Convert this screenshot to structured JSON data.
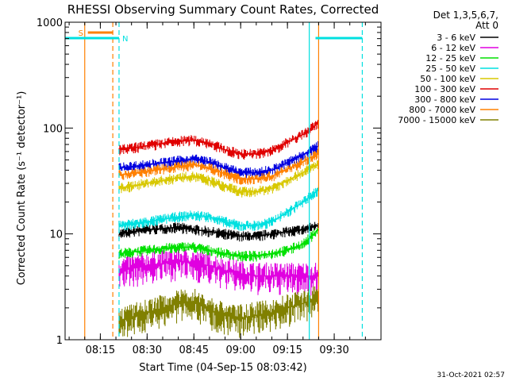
{
  "chart_data": {
    "type": "line",
    "title": "RHESSI Observing Summary Count Rates, Corrected",
    "ylabel": "Corrected Count Rate (s⁻¹ detector⁻¹)",
    "xlabel": "Start Time (04-Sep-15 08:03:42)",
    "yscale": "log",
    "ylim": [
      1,
      1000
    ],
    "xlim": [
      "08:03:42",
      "09:45:00"
    ],
    "x_ticks": [
      "08:15",
      "08:30",
      "08:45",
      "09:00",
      "09:15",
      "09:30"
    ],
    "y_ticks": [
      "1",
      "10",
      "100",
      "1000"
    ],
    "legend_header": [
      "Det 1,3,5,6,7,",
      "Att 0"
    ],
    "legend_placement": "right",
    "footer_date": "31-Oct-2021 02:57",
    "grid": false,
    "annotations": {
      "saa_label": "S",
      "night_label": "N",
      "saa_interval": [
        "08:11",
        "08:19"
      ],
      "night_intervals": [
        [
          "08:03:42",
          "08:21"
        ],
        [
          "09:24",
          "09:39"
        ]
      ],
      "orange_lines": [
        "08:10",
        "08:19",
        "09:25"
      ],
      "cyan_lines": [
        "08:21",
        "09:22",
        "09:39"
      ]
    },
    "x": [
      "08:21",
      "08:30",
      "08:40",
      "08:45",
      "08:50",
      "08:55",
      "09:00",
      "09:05",
      "09:10",
      "09:15",
      "09:20",
      "09:25"
    ],
    "series": [
      {
        "name": "3 - 6 keV",
        "color": "#000000",
        "values": [
          10,
          11,
          11.5,
          11,
          10.5,
          10,
          9.5,
          9.5,
          10,
          10.5,
          11,
          12
        ]
      },
      {
        "name": "6 - 12 keV",
        "color": "#e000e0",
        "values": [
          4.5,
          5,
          5.5,
          5.3,
          5,
          4.5,
          4.2,
          4,
          4,
          4,
          4,
          4
        ]
      },
      {
        "name": "12 - 25 keV",
        "color": "#00e000",
        "values": [
          6.5,
          7,
          7.5,
          7.5,
          7,
          6.5,
          6.2,
          6.2,
          6.5,
          7,
          8,
          11
        ]
      },
      {
        "name": "25 - 50 keV",
        "color": "#00e0e0",
        "values": [
          12,
          13,
          14.5,
          15,
          14.5,
          13,
          12,
          12,
          13,
          16,
          20,
          26
        ]
      },
      {
        "name": "50 - 100 keV",
        "color": "#d8c800",
        "values": [
          27,
          30,
          34,
          35,
          32,
          28,
          25,
          25,
          27,
          32,
          38,
          46
        ]
      },
      {
        "name": "100 - 300 keV",
        "color": "#e00000",
        "values": [
          62,
          68,
          75,
          77,
          72,
          62,
          57,
          57,
          61,
          73,
          87,
          112
        ]
      },
      {
        "name": "300 - 800 keV",
        "color": "#0000e0",
        "values": [
          42,
          45,
          49,
          51,
          48,
          42,
          38,
          38,
          40,
          47,
          56,
          68
        ]
      },
      {
        "name": "800 - 7000 keV",
        "color": "#ff8000",
        "values": [
          36,
          39,
          43,
          45,
          42,
          37,
          33,
          33,
          35,
          41,
          48,
          58
        ]
      },
      {
        "name": "7000 - 15000 keV",
        "color": "#808000",
        "values": [
          1.5,
          1.8,
          2.2,
          2.3,
          1.9,
          1.7,
          1.6,
          1.7,
          1.8,
          2,
          2.2,
          2.5
        ]
      }
    ]
  }
}
